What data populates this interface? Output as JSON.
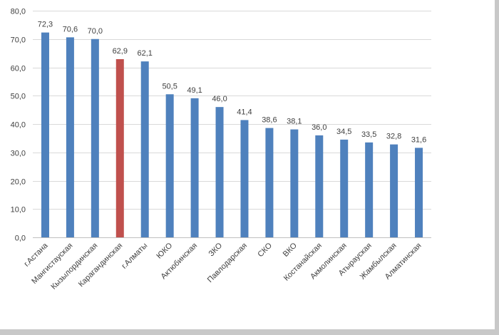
{
  "chart_data": {
    "type": "bar",
    "title": "",
    "xlabel": "",
    "ylabel": "",
    "ylim": [
      0,
      80
    ],
    "yticks": [
      "0,0",
      "10,0",
      "20,0",
      "30,0",
      "40,0",
      "50,0",
      "60,0",
      "70,0",
      "80,0"
    ],
    "grid": true,
    "legend": "none",
    "categories": [
      "г.Астана",
      "Мангистауская",
      "Кызылординская",
      "Карагандинская",
      "г.Алматы",
      "ЮКО",
      "Актюбинская",
      "ЗКО",
      "Павлодарская",
      "СКО",
      "ВКО",
      "Костанайская",
      "Акмолинская",
      "Атырауская",
      "Жамбылская",
      "Алматинская"
    ],
    "values": [
      72.3,
      70.6,
      70.0,
      62.9,
      62.1,
      50.5,
      49.1,
      46.0,
      41.4,
      38.6,
      38.1,
      36.0,
      34.5,
      33.5,
      32.8,
      31.6
    ],
    "value_labels": [
      "72,3",
      "70,6",
      "70,0",
      "62,9",
      "62,1",
      "50,5",
      "49,1",
      "46,0",
      "41,4",
      "38,6",
      "38,1",
      "36,0",
      "34,5",
      "33,5",
      "32,8",
      "31,6"
    ],
    "highlight_index": 3,
    "colors": {
      "bar": "#4F81BD",
      "highlight": "#C0504D",
      "grid": "#D9D9D9",
      "text": "#404040"
    }
  }
}
